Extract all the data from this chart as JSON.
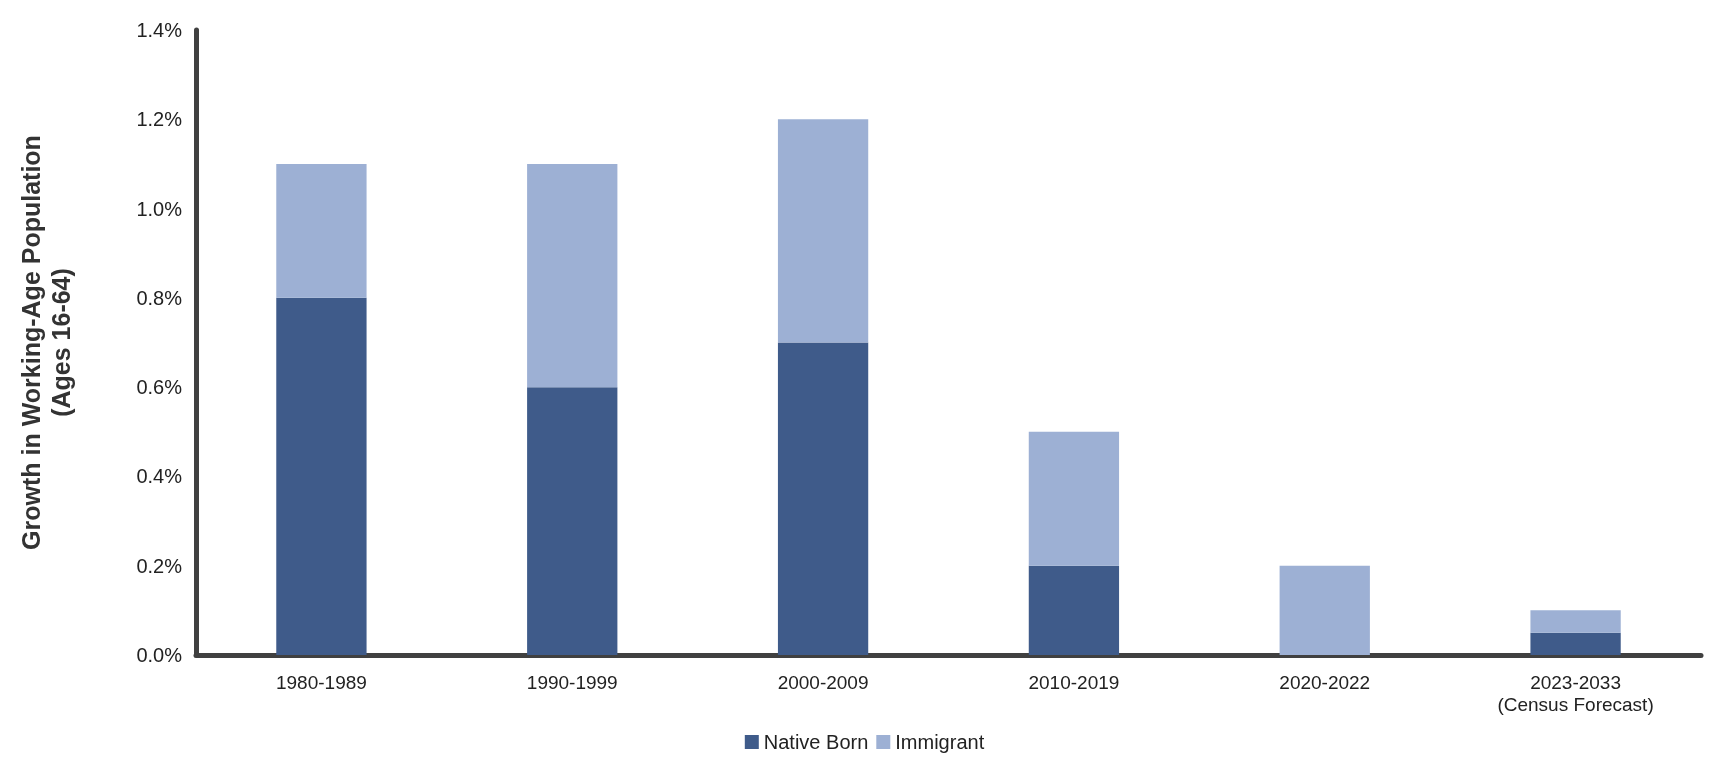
{
  "chart_data": {
    "type": "bar",
    "stacked": true,
    "ylabel": "Growth in Working-Age Population\n(Ages 16-64)",
    "categories": [
      "1980-1989",
      "1990-1999",
      "2000-2009",
      "2010-2019",
      "2020-2022",
      "2023-2033\n(Census Forecast)"
    ],
    "series": [
      {
        "name": "Native Born",
        "color": "#3f5b8a",
        "values": [
          0.8,
          0.6,
          0.7,
          0.2,
          0,
          0.05
        ]
      },
      {
        "name": "Immigrant",
        "color": "#9db0d4",
        "values": [
          0.3,
          0.5,
          0.5,
          0.3,
          0.2,
          0.05
        ]
      }
    ],
    "ylim": [
      0,
      1.4
    ],
    "yticks": [
      {
        "value": 0,
        "label": "0.0%"
      },
      {
        "value": 0.2,
        "label": "0.2%"
      },
      {
        "value": 0.4,
        "label": "0.4%"
      },
      {
        "value": 0.6,
        "label": "0.6%"
      },
      {
        "value": 0.8,
        "label": "0.8%"
      },
      {
        "value": 1,
        "label": "1.0%"
      },
      {
        "value": 1.2,
        "label": "1.2%"
      },
      {
        "value": 1.4,
        "label": "1.4%"
      }
    ],
    "grid": false,
    "legend": "bottom"
  }
}
